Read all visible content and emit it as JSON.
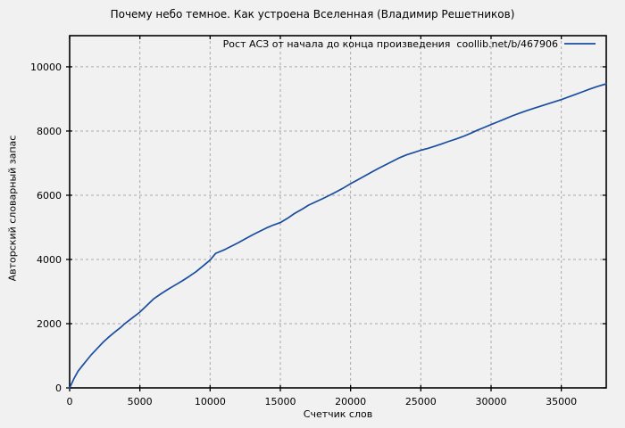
{
  "chart_data": {
    "type": "line",
    "title": "Почему небо темное. Как устроена Вселенная (Владимир Решетников)",
    "xlabel": "Счетчик слов",
    "ylabel": "Авторский словарный запас",
    "legend_position": "top-right-inside",
    "grid": true,
    "xlim": [
      0,
      38200
    ],
    "ylim": [
      0,
      10970
    ],
    "x_ticks": [
      0,
      5000,
      10000,
      15000,
      20000,
      25000,
      30000,
      35000
    ],
    "y_ticks": [
      0,
      2000,
      4000,
      6000,
      8000,
      10000
    ],
    "colors": {
      "background": "#f1f1f1",
      "grid": "#a9a9a9",
      "axis": "#000000",
      "text": "#000000",
      "series": "#1a4d9e"
    },
    "series": [
      {
        "name": "Рост АСЗ от начала до конца произведения  coollib.net/b/467906",
        "color": "#1a4d9e",
        "points": [
          [
            0,
            0
          ],
          [
            300,
            280
          ],
          [
            600,
            520
          ],
          [
            900,
            690
          ],
          [
            1200,
            850
          ],
          [
            1500,
            1010
          ],
          [
            1800,
            1150
          ],
          [
            2100,
            1290
          ],
          [
            2400,
            1430
          ],
          [
            2700,
            1550
          ],
          [
            3000,
            1660
          ],
          [
            3300,
            1770
          ],
          [
            3600,
            1870
          ],
          [
            3900,
            1990
          ],
          [
            4200,
            2090
          ],
          [
            4500,
            2190
          ],
          [
            5000,
            2360
          ],
          [
            5500,
            2570
          ],
          [
            6000,
            2780
          ],
          [
            6500,
            2930
          ],
          [
            7000,
            3070
          ],
          [
            7500,
            3200
          ],
          [
            8000,
            3330
          ],
          [
            8500,
            3470
          ],
          [
            9000,
            3620
          ],
          [
            9500,
            3800
          ],
          [
            10000,
            3980
          ],
          [
            10400,
            4190
          ],
          [
            11000,
            4300
          ],
          [
            11500,
            4410
          ],
          [
            12000,
            4520
          ],
          [
            12500,
            4640
          ],
          [
            13000,
            4760
          ],
          [
            13500,
            4870
          ],
          [
            14000,
            4980
          ],
          [
            14500,
            5070
          ],
          [
            15000,
            5150
          ],
          [
            15500,
            5280
          ],
          [
            16000,
            5430
          ],
          [
            16600,
            5580
          ],
          [
            17000,
            5690
          ],
          [
            17500,
            5790
          ],
          [
            18000,
            5890
          ],
          [
            18500,
            6000
          ],
          [
            19000,
            6110
          ],
          [
            19500,
            6230
          ],
          [
            20000,
            6360
          ],
          [
            20500,
            6480
          ],
          [
            21000,
            6600
          ],
          [
            21500,
            6720
          ],
          [
            22000,
            6840
          ],
          [
            22500,
            6950
          ],
          [
            23000,
            7060
          ],
          [
            23500,
            7170
          ],
          [
            24000,
            7260
          ],
          [
            24500,
            7330
          ],
          [
            25000,
            7400
          ],
          [
            25500,
            7460
          ],
          [
            26000,
            7530
          ],
          [
            26500,
            7600
          ],
          [
            27000,
            7680
          ],
          [
            27500,
            7750
          ],
          [
            28000,
            7830
          ],
          [
            28500,
            7920
          ],
          [
            29000,
            8020
          ],
          [
            29500,
            8110
          ],
          [
            30000,
            8200
          ],
          [
            30500,
            8290
          ],
          [
            31000,
            8380
          ],
          [
            31500,
            8470
          ],
          [
            32000,
            8550
          ],
          [
            32500,
            8630
          ],
          [
            33000,
            8700
          ],
          [
            33500,
            8770
          ],
          [
            34000,
            8840
          ],
          [
            34500,
            8910
          ],
          [
            35000,
            8980
          ],
          [
            35500,
            9060
          ],
          [
            36000,
            9140
          ],
          [
            36500,
            9220
          ],
          [
            37000,
            9300
          ],
          [
            37500,
            9380
          ],
          [
            38200,
            9470
          ]
        ]
      }
    ]
  }
}
